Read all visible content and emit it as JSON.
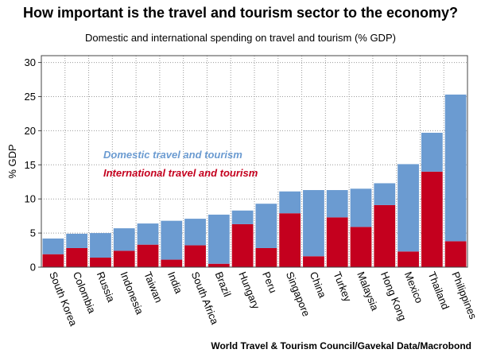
{
  "chart_data": {
    "type": "bar",
    "stacked": true,
    "title": "How important is the travel and tourism sector to the economy?",
    "subtitle": "Domestic and international spending on travel and tourism (% GDP)",
    "ylabel": "% GDP",
    "xlabel": "",
    "ylim": [
      0,
      31
    ],
    "yticks": [
      0,
      5,
      10,
      15,
      20,
      25,
      30
    ],
    "grid": true,
    "legend_position": "middle-left",
    "source": "World Travel & Tourism Council/Gavekal Data/Macrobond",
    "categories": [
      "South Korea",
      "Colombia",
      "Russia",
      "Indonesia",
      "Taiwan",
      "India",
      "South Africa",
      "Brazil",
      "Hungary",
      "Peru",
      "Singapore",
      "China",
      "Turkey",
      "Malaysia",
      "Hong Kong",
      "Mexico",
      "Thailand",
      "Philippines"
    ],
    "series": [
      {
        "name": "International travel and tourism",
        "color": "#c4001e",
        "values": [
          1.9,
          2.8,
          1.4,
          2.4,
          3.3,
          1.1,
          3.2,
          0.5,
          6.3,
          2.8,
          7.9,
          1.6,
          7.3,
          5.9,
          9.1,
          2.3,
          14.0,
          3.8
        ]
      },
      {
        "name": "Domestic travel and tourism",
        "color": "#6b9bd1",
        "values": [
          2.3,
          2.1,
          3.6,
          3.3,
          3.1,
          5.7,
          3.9,
          7.2,
          2.0,
          6.5,
          3.2,
          9.7,
          4.0,
          5.6,
          3.2,
          12.8,
          5.7,
          21.5
        ]
      }
    ]
  }
}
